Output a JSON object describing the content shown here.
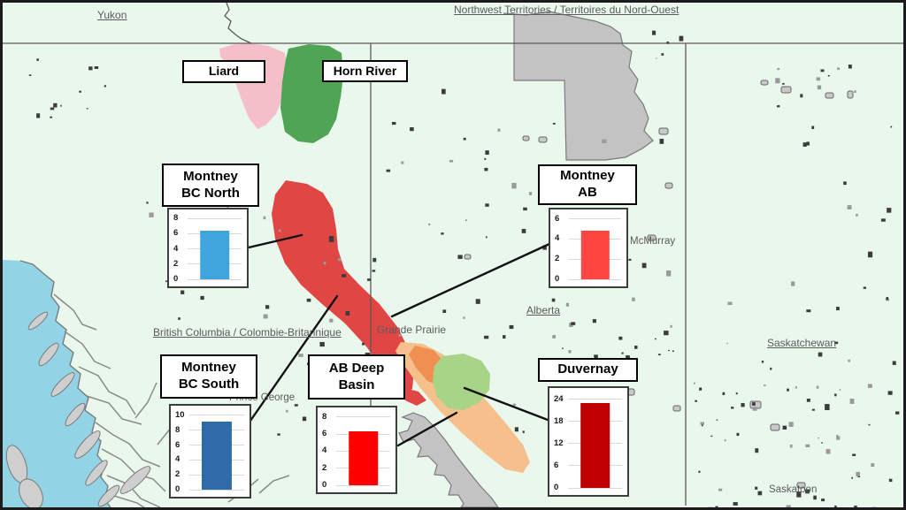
{
  "colors": {
    "land": "#e9f7ec",
    "ocean": "#93d3e6",
    "border_line": "#5a5a5a",
    "coast_line": "#7a7a7a",
    "park_fill": "#c3c3c3",
    "park_stroke": "#7a7a7a",
    "connector": "#111111",
    "speckle_dark": "#3c3c3c",
    "lake_fill": "#c9c9c9"
  },
  "province_labels": [
    {
      "id": "yukon",
      "text": "Yukon"
    },
    {
      "id": "nwt",
      "text": "Northwest Territories / Territoires du Nord-Ouest"
    },
    {
      "id": "bc",
      "text": "British Columbia / Colombie-Britannique"
    },
    {
      "id": "alberta",
      "text": "Alberta"
    },
    {
      "id": "saskatchewan",
      "text": "Saskatchewan"
    }
  ],
  "city_labels": [
    {
      "id": "grande-prairie",
      "text": "Grande Prairie"
    },
    {
      "id": "mcmurray",
      "text": "McMurray"
    },
    {
      "id": "prince-george",
      "text": "Prince George"
    },
    {
      "id": "saskatoon",
      "text": "Saskatoon"
    }
  ],
  "plays": [
    {
      "id": "liard",
      "label_line1": "Liard",
      "region_color": "#f5bfca"
    },
    {
      "id": "horn-river",
      "label_line1": "Horn River",
      "region_color": "#4fa553"
    },
    {
      "id": "montney-bc-north",
      "label_line1": "Montney",
      "label_line2": "BC North",
      "region_color": "#e04744",
      "chart_index": 0
    },
    {
      "id": "montney-ab",
      "label_line1": "Montney",
      "label_line2": "AB",
      "region_color": "#e04744",
      "chart_index": 1
    },
    {
      "id": "montney-bc-south",
      "label_line1": "Montney",
      "label_line2": "BC South",
      "region_color": "#e04744",
      "chart_index": 2
    },
    {
      "id": "ab-deep-basin",
      "label_line1": "AB Deep",
      "label_line2": "Basin",
      "region_color": "#f6c08d",
      "region_core_color": "#ef8f51",
      "chart_index": 3
    },
    {
      "id": "duvernay",
      "label_line1": "Duvernay",
      "region_color": "#a8d488",
      "chart_index": 4
    }
  ],
  "chart_data": [
    {
      "type": "bar",
      "title": "Montney BC North",
      "categories": [
        ""
      ],
      "values": [
        6.4
      ],
      "yticks": [
        0,
        2,
        4,
        6,
        8
      ],
      "ylim": [
        0,
        8.6
      ],
      "bar_color": "#41a5dd",
      "grid": true,
      "xlabel": "",
      "ylabel": ""
    },
    {
      "type": "bar",
      "title": "Montney AB",
      "categories": [
        ""
      ],
      "values": [
        4.8
      ],
      "yticks": [
        0,
        2,
        4,
        6
      ],
      "ylim": [
        0,
        6.5
      ],
      "bar_color": "#ff4540",
      "grid": true,
      "xlabel": "",
      "ylabel": ""
    },
    {
      "type": "bar",
      "title": "Montney BC South",
      "categories": [
        ""
      ],
      "values": [
        9.2
      ],
      "yticks": [
        0,
        2,
        4,
        6,
        8,
        10
      ],
      "ylim": [
        0,
        10.7
      ],
      "bar_color": "#2e6ba8",
      "grid": true,
      "xlabel": "",
      "ylabel": ""
    },
    {
      "type": "bar",
      "title": "AB Deep Basin",
      "categories": [
        ""
      ],
      "values": [
        6.3
      ],
      "yticks": [
        0,
        2,
        4,
        6,
        8
      ],
      "ylim": [
        0,
        8.6
      ],
      "bar_color": "#fe0000",
      "grid": true,
      "xlabel": "",
      "ylabel": ""
    },
    {
      "type": "bar",
      "title": "Duvernay",
      "categories": [
        ""
      ],
      "values": [
        23
      ],
      "yticks": [
        0,
        6,
        12,
        18,
        24
      ],
      "ylim": [
        0,
        25.8
      ],
      "bar_color": "#c00000",
      "grid": true,
      "xlabel": "",
      "ylabel": ""
    }
  ]
}
